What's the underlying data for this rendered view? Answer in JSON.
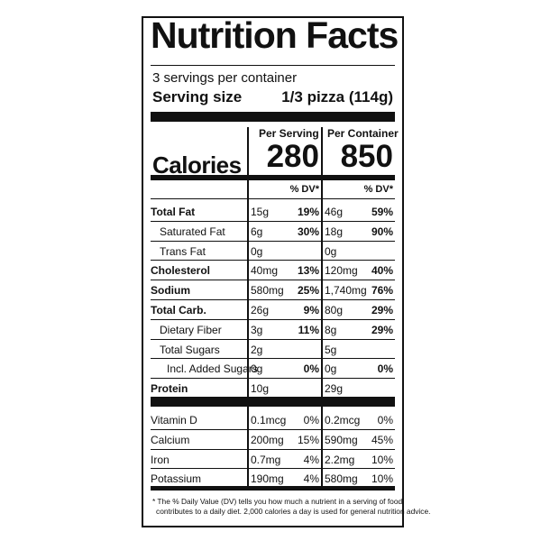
{
  "label": {
    "title": "Nutrition Facts",
    "servings_per_container": "3 servings per container",
    "serving_size_label": "Serving size",
    "serving_size_value": "1/3 pizza (114g)",
    "per_serving_header": "Per Serving",
    "per_container_header": "Per Container",
    "calories_label": "Calories",
    "calories_per_serving": "280",
    "calories_per_container": "850",
    "dv_header": "% DV*",
    "nutrients": [
      {
        "name": "Total Fat",
        "bold": true,
        "indent": 0,
        "serv_amt": "15g",
        "serv_dv": "19%",
        "cont_amt": "46g",
        "cont_dv": "59%"
      },
      {
        "name": "Saturated Fat",
        "bold": false,
        "indent": 1,
        "serv_amt": "6g",
        "serv_dv": "30%",
        "cont_amt": "18g",
        "cont_dv": "90%"
      },
      {
        "name": "Trans Fat",
        "bold": false,
        "indent": 1,
        "serv_amt": "0g",
        "serv_dv": "",
        "cont_amt": "0g",
        "cont_dv": ""
      },
      {
        "name": "Cholesterol",
        "bold": true,
        "indent": 0,
        "serv_amt": "40mg",
        "serv_dv": "13%",
        "cont_amt": "120mg",
        "cont_dv": "40%"
      },
      {
        "name": "Sodium",
        "bold": true,
        "indent": 0,
        "serv_amt": "580mg",
        "serv_dv": "25%",
        "cont_amt": "1,740mg",
        "cont_dv": "76%"
      },
      {
        "name": "Total Carb.",
        "bold": true,
        "indent": 0,
        "serv_amt": "26g",
        "serv_dv": "9%",
        "cont_amt": "80g",
        "cont_dv": "29%"
      },
      {
        "name": "Dietary Fiber",
        "bold": false,
        "indent": 1,
        "serv_amt": "3g",
        "serv_dv": "11%",
        "cont_amt": "8g",
        "cont_dv": "29%"
      },
      {
        "name": "Total Sugars",
        "bold": false,
        "indent": 1,
        "serv_amt": "2g",
        "serv_dv": "",
        "cont_amt": "5g",
        "cont_dv": ""
      },
      {
        "name": "Incl. Added Sugars",
        "bold": false,
        "indent": 2,
        "serv_amt": "0g",
        "serv_dv": "0%",
        "cont_amt": "0g",
        "cont_dv": "0%"
      },
      {
        "name": "Protein",
        "bold": true,
        "indent": 0,
        "serv_amt": "10g",
        "serv_dv": "",
        "cont_amt": "29g",
        "cont_dv": ""
      }
    ],
    "vitamins": [
      {
        "name": "Vitamin D",
        "serv_amt": "0.1mcg",
        "serv_dv": "0%",
        "cont_amt": "0.2mcg",
        "cont_dv": "0%"
      },
      {
        "name": "Calcium",
        "serv_amt": "200mg",
        "serv_dv": "15%",
        "cont_amt": "590mg",
        "cont_dv": "45%"
      },
      {
        "name": "Iron",
        "serv_amt": "0.7mg",
        "serv_dv": "4%",
        "cont_amt": "2.2mg",
        "cont_dv": "10%"
      },
      {
        "name": "Potassium",
        "serv_amt": "190mg",
        "serv_dv": "4%",
        "cont_amt": "580mg",
        "cont_dv": "10%"
      }
    ],
    "footnote_line1": "* The % Daily Value (DV) tells you how much a nutrient in a serving of food",
    "footnote_line2": "contributes to a daily diet. 2,000 calories a day is used for general nutrition advice."
  }
}
